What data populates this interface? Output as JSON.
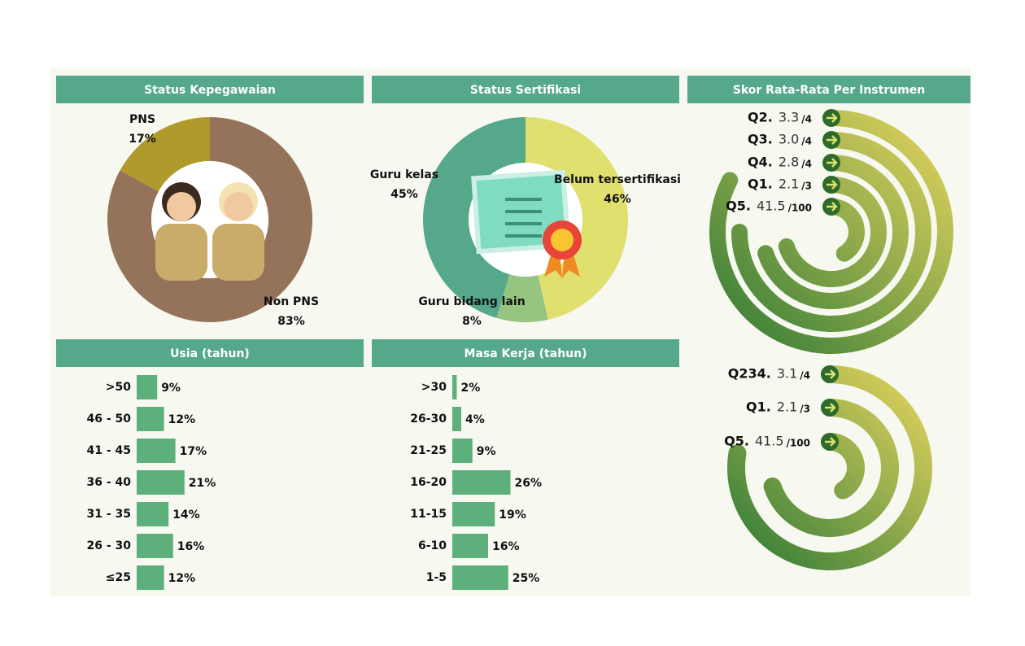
{
  "chart_data": [
    {
      "type": "pie",
      "title": "Status Kepegawaian",
      "categories": [
        "Non PNS",
        "PNS"
      ],
      "values": [
        83,
        17
      ],
      "value_labels": [
        "83%",
        "17%"
      ],
      "colors": [
        "#94735a",
        "#b09a2c"
      ]
    },
    {
      "type": "pie",
      "title": "Status Sertifikasi",
      "categories": [
        "Belum tersertifikasi",
        "Guru bidang lain",
        "Guru kelas"
      ],
      "values": [
        46,
        8,
        45
      ],
      "value_labels": [
        "46%",
        "8%",
        "45%"
      ],
      "colors": [
        "#dfe06e",
        "#96c481",
        "#55a88a"
      ]
    },
    {
      "type": "radial_bar",
      "title": "Skor Rata-Rata Per Instrumen",
      "categories": [
        "Q2.",
        "Q3.",
        "Q4.",
        "Q1.",
        "Q5."
      ],
      "values": [
        3.3,
        3.0,
        2.8,
        2.1,
        41.5
      ],
      "value_labels": [
        "3.3",
        "3.0",
        "2.8",
        "2.1",
        "41.5"
      ],
      "max": [
        4,
        4,
        4,
        3,
        100
      ],
      "max_labels": [
        "/4",
        "/4",
        "/4",
        "/3",
        "/100"
      ],
      "color_start": "#e6d55e",
      "color_end": "#2f7a36"
    },
    {
      "type": "hbar",
      "title": "Usia (tahun)",
      "categories": [
        ">50",
        "46 - 50",
        "41 - 45",
        "36 - 40",
        "31 - 35",
        "26 - 30",
        "≤25"
      ],
      "values": [
        9,
        12,
        17,
        21,
        14,
        16,
        12
      ],
      "value_labels": [
        "9%",
        "12%",
        "17%",
        "21%",
        "14%",
        "16%",
        "12%"
      ],
      "color": "#5db07c"
    },
    {
      "type": "hbar",
      "title": "Masa Kerja (tahun)",
      "categories": [
        ">30",
        "26-30",
        "21-25",
        "16-20",
        "11-15",
        "6-10",
        "1-5"
      ],
      "values": [
        2,
        4,
        9,
        26,
        19,
        16,
        25
      ],
      "value_labels": [
        "2%",
        "4%",
        "9%",
        "26%",
        "19%",
        "16%",
        "25%"
      ],
      "color": "#5db07c"
    },
    {
      "type": "radial_bar",
      "categories": [
        "Q234.",
        "Q1.",
        "Q5."
      ],
      "values": [
        3.1,
        2.1,
        41.5
      ],
      "value_labels": [
        "3.1",
        "2.1",
        "41.5"
      ],
      "max": [
        4,
        3,
        100
      ],
      "max_labels": [
        "/4",
        "/3",
        "/100"
      ],
      "color_start": "#e6d55e",
      "color_end": "#2f7a36"
    }
  ]
}
